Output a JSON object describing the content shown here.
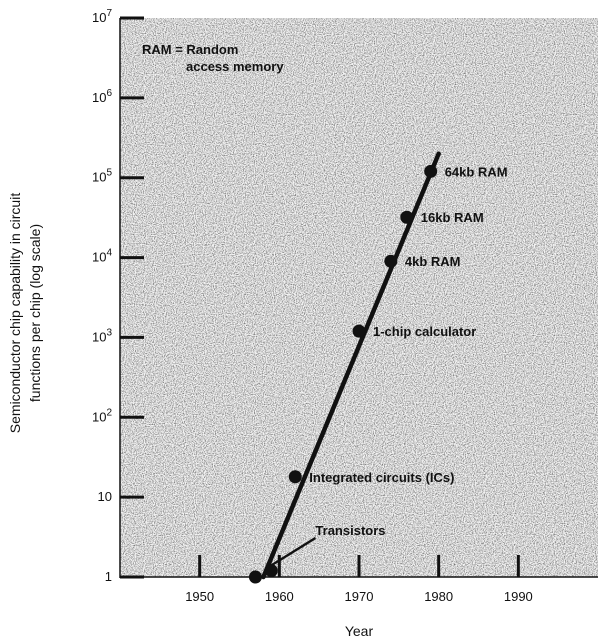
{
  "chart_data": {
    "type": "line",
    "title": "",
    "xlabel": "Year",
    "ylabel_lines": [
      "Semiconductor chip capability in circuit",
      "functions per chip (log scale)"
    ],
    "yscale": "log",
    "xlim": [
      1940,
      2000
    ],
    "ylim": [
      1,
      10000000
    ],
    "x_ticks": [
      1950,
      1960,
      1970,
      1980,
      1990
    ],
    "y_ticks": [
      {
        "value": 1,
        "base": "1",
        "exp": ""
      },
      {
        "value": 10,
        "base": "10",
        "exp": ""
      },
      {
        "value": 100,
        "base": "10",
        "exp": "2"
      },
      {
        "value": 1000,
        "base": "10",
        "exp": "3"
      },
      {
        "value": 10000,
        "base": "10",
        "exp": "4"
      },
      {
        "value": 100000,
        "base": "10",
        "exp": "5"
      },
      {
        "value": 1000000,
        "base": "10",
        "exp": "6"
      },
      {
        "value": 10000000,
        "base": "10",
        "exp": "7"
      }
    ],
    "trend_line": {
      "x": [
        1958,
        1980
      ],
      "y": [
        1,
        200000
      ]
    },
    "series": [
      {
        "points": [
          {
            "x": 1957,
            "y": 1,
            "label": "Transistors"
          },
          {
            "x": 1959,
            "y": 1.2,
            "label": ""
          },
          {
            "x": 1962,
            "y": 18,
            "label": "Integrated circuits (ICs)"
          },
          {
            "x": 1970,
            "y": 1200,
            "label": "1-chip calculator"
          },
          {
            "x": 1974,
            "y": 9000,
            "label": "4kb RAM"
          },
          {
            "x": 1976,
            "y": 32000,
            "label": "16kb RAM"
          },
          {
            "x": 1979,
            "y": 120000,
            "label": "64kb RAM"
          }
        ]
      }
    ],
    "legend_note": [
      "RAM = Random",
      "access memory"
    ],
    "grid": false
  }
}
